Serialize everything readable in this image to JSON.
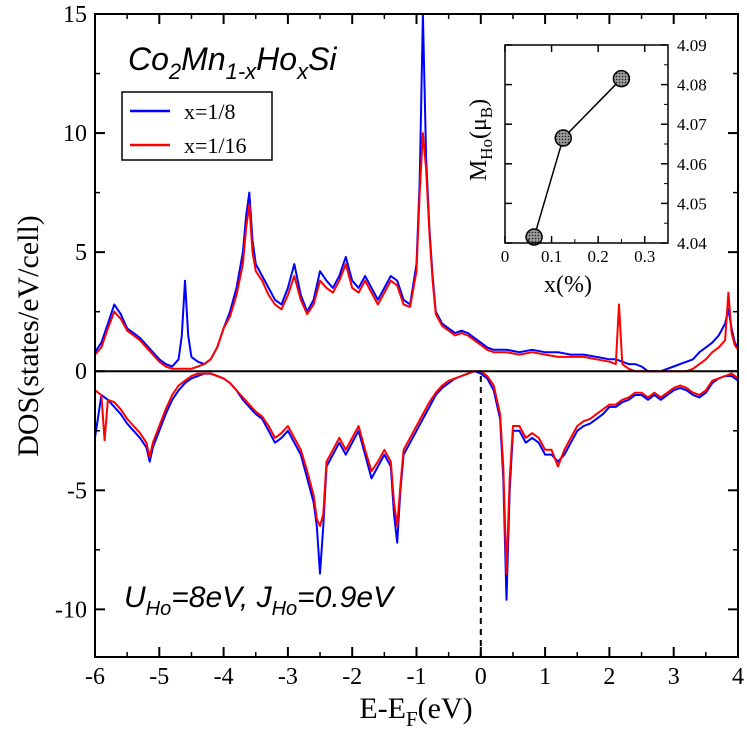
{
  "chart_data": [
    {
      "type": "line",
      "title": "Co2Mn1-xHoxSi",
      "title_parts": {
        "co": "Co",
        "two": "2",
        "mn": "Mn",
        "sub": "1-x",
        "ho": "Ho",
        "subx": "x",
        "si": "Si"
      },
      "xlabel": {
        "main": "E-E",
        "sub": "F",
        "unit": "(eV)"
      },
      "ylabel": "DOS(states/eV/cell)",
      "xlim": [
        -6,
        4
      ],
      "ylim": [
        -12,
        15
      ],
      "xticks": [
        "-6",
        "-5",
        "-4",
        "-3",
        "-2",
        "-1",
        "0",
        "1",
        "2",
        "3",
        "4"
      ],
      "yticks": [
        "-10",
        "-5",
        "0",
        "5",
        "10",
        "15"
      ],
      "grid": false,
      "legend_position": "top-left",
      "fermi_level_marker": {
        "x": 0,
        "style": "dashed"
      },
      "annotation": {
        "u": "U",
        "u_sub": "Ho",
        "u_val": "=8eV, ",
        "j": "J",
        "j_sub": "Ho",
        "j_val": "=0.9eV"
      },
      "series": [
        {
          "name": "x=1/8",
          "color": "#0000ff",
          "spin_up": {
            "x": [
              -6.0,
              -5.9,
              -5.8,
              -5.7,
              -5.6,
              -5.5,
              -5.4,
              -5.3,
              -5.2,
              -5.1,
              -5.0,
              -4.9,
              -4.8,
              -4.7,
              -4.65,
              -4.6,
              -4.55,
              -4.5,
              -4.4,
              -4.3,
              -4.2,
              -4.1,
              -4.0,
              -3.9,
              -3.8,
              -3.7,
              -3.65,
              -3.6,
              -3.55,
              -3.5,
              -3.4,
              -3.3,
              -3.2,
              -3.1,
              -3.0,
              -2.9,
              -2.8,
              -2.7,
              -2.6,
              -2.5,
              -2.4,
              -2.3,
              -2.2,
              -2.1,
              -2.0,
              -1.9,
              -1.8,
              -1.7,
              -1.6,
              -1.5,
              -1.4,
              -1.3,
              -1.2,
              -1.1,
              -1.0,
              -0.95,
              -0.9,
              -0.85,
              -0.8,
              -0.75,
              -0.7,
              -0.6,
              -0.5,
              -0.4,
              -0.3,
              -0.2,
              -0.1,
              0.0,
              0.1,
              0.2,
              0.4,
              0.6,
              0.8,
              1.0,
              1.2,
              1.4,
              1.6,
              1.8,
              2.0,
              2.1,
              2.2,
              2.3,
              2.4,
              2.5,
              2.6,
              2.7,
              2.8,
              2.9,
              3.0,
              3.1,
              3.2,
              3.3,
              3.4,
              3.5,
              3.6,
              3.7,
              3.8,
              3.85,
              3.9,
              3.95,
              4.0
            ],
            "y": [
              0.8,
              1.2,
              2.0,
              2.8,
              2.4,
              1.8,
              1.6,
              1.4,
              1.1,
              0.8,
              0.5,
              0.3,
              0.2,
              0.5,
              1.5,
              3.8,
              1.5,
              0.6,
              0.4,
              0.3,
              0.5,
              1.0,
              1.8,
              2.5,
              3.5,
              5.0,
              6.5,
              7.5,
              5.5,
              4.5,
              4.0,
              3.5,
              3.0,
              2.8,
              3.5,
              4.5,
              3.2,
              2.5,
              3.0,
              4.2,
              3.8,
              3.5,
              4.0,
              4.8,
              3.8,
              3.5,
              4.0,
              3.5,
              3.0,
              3.5,
              4.0,
              3.8,
              3.0,
              2.8,
              4.5,
              8.0,
              15.0,
              9.0,
              6.0,
              4.0,
              2.5,
              2.0,
              1.8,
              1.6,
              1.7,
              1.6,
              1.4,
              1.2,
              1.0,
              0.9,
              0.9,
              0.8,
              0.9,
              0.8,
              0.8,
              0.7,
              0.7,
              0.6,
              0.5,
              0.5,
              0.4,
              0.3,
              0.3,
              0.2,
              0.0,
              0.0,
              0.0,
              0.1,
              0.2,
              0.3,
              0.4,
              0.5,
              0.8,
              1.0,
              1.2,
              1.5,
              2.0,
              2.6,
              1.8,
              1.2,
              1.0
            ]
          },
          "spin_down": {
            "x": [
              -6.0,
              -5.9,
              -5.8,
              -5.7,
              -5.6,
              -5.5,
              -5.4,
              -5.3,
              -5.2,
              -5.15,
              -5.1,
              -5.0,
              -4.9,
              -4.8,
              -4.7,
              -4.6,
              -4.5,
              -4.4,
              -4.3,
              -4.2,
              -4.1,
              -4.0,
              -3.9,
              -3.8,
              -3.7,
              -3.6,
              -3.5,
              -3.4,
              -3.3,
              -3.2,
              -3.1,
              -3.0,
              -2.9,
              -2.8,
              -2.7,
              -2.6,
              -2.55,
              -2.5,
              -2.45,
              -2.4,
              -2.3,
              -2.2,
              -2.1,
              -2.0,
              -1.9,
              -1.8,
              -1.7,
              -1.6,
              -1.5,
              -1.4,
              -1.35,
              -1.3,
              -1.25,
              -1.2,
              -1.1,
              -1.0,
              -0.9,
              -0.8,
              -0.7,
              -0.6,
              -0.5,
              -0.4,
              -0.3,
              -0.2,
              -0.1,
              0.0,
              0.1,
              0.2,
              0.3,
              0.35,
              0.4,
              0.45,
              0.5,
              0.6,
              0.7,
              0.8,
              0.9,
              1.0,
              1.1,
              1.2,
              1.3,
              1.4,
              1.5,
              1.6,
              1.7,
              1.8,
              1.9,
              2.0,
              2.1,
              2.2,
              2.3,
              2.4,
              2.5,
              2.6,
              2.7,
              2.8,
              2.9,
              3.0,
              3.1,
              3.2,
              3.3,
              3.4,
              3.5,
              3.6,
              3.7,
              3.8,
              3.9,
              4.0
            ],
            "y": [
              -2.8,
              -1.0,
              -1.2,
              -1.5,
              -1.8,
              -2.2,
              -2.5,
              -2.8,
              -3.2,
              -3.8,
              -3.2,
              -2.5,
              -1.8,
              -1.2,
              -0.8,
              -0.5,
              -0.3,
              -0.2,
              -0.1,
              -0.1,
              -0.2,
              -0.3,
              -0.5,
              -0.8,
              -1.2,
              -1.5,
              -1.8,
              -2.0,
              -2.5,
              -3.0,
              -2.8,
              -2.5,
              -3.0,
              -3.5,
              -4.5,
              -5.5,
              -6.5,
              -8.5,
              -6.5,
              -4.0,
              -3.5,
              -3.0,
              -3.5,
              -3.0,
              -2.5,
              -3.5,
              -4.5,
              -4.0,
              -3.5,
              -4.0,
              -6.0,
              -7.2,
              -5.0,
              -3.5,
              -3.0,
              -2.5,
              -2.0,
              -1.5,
              -1.0,
              -0.7,
              -0.5,
              -0.3,
              -0.2,
              -0.1,
              0.0,
              -0.1,
              -0.3,
              -0.8,
              -2.0,
              -4.5,
              -9.6,
              -5.0,
              -2.5,
              -2.5,
              -3.0,
              -2.8,
              -3.0,
              -3.5,
              -3.5,
              -3.8,
              -3.5,
              -3.0,
              -2.5,
              -2.3,
              -2.2,
              -2.0,
              -1.8,
              -1.5,
              -1.5,
              -1.3,
              -1.2,
              -1.0,
              -1.0,
              -1.2,
              -1.0,
              -1.2,
              -1.0,
              -0.8,
              -0.7,
              -0.8,
              -1.0,
              -1.1,
              -0.9,
              -0.5,
              -0.3,
              -0.2,
              -0.2,
              -0.4
            ]
          }
        },
        {
          "name": "x=1/16",
          "color": "#ff0000",
          "spin_up": {
            "x": [
              -6.0,
              -5.9,
              -5.8,
              -5.7,
              -5.6,
              -5.5,
              -5.4,
              -5.3,
              -5.2,
              -5.1,
              -5.0,
              -4.9,
              -4.8,
              -4.7,
              -4.6,
              -4.5,
              -4.4,
              -4.3,
              -4.2,
              -4.1,
              -4.0,
              -3.9,
              -3.8,
              -3.7,
              -3.65,
              -3.6,
              -3.55,
              -3.5,
              -3.4,
              -3.3,
              -3.2,
              -3.1,
              -3.0,
              -2.9,
              -2.8,
              -2.7,
              -2.6,
              -2.5,
              -2.4,
              -2.3,
              -2.2,
              -2.1,
              -2.0,
              -1.9,
              -1.8,
              -1.7,
              -1.6,
              -1.5,
              -1.4,
              -1.3,
              -1.2,
              -1.1,
              -1.0,
              -0.95,
              -0.9,
              -0.85,
              -0.8,
              -0.75,
              -0.7,
              -0.6,
              -0.5,
              -0.4,
              -0.3,
              -0.2,
              -0.1,
              0.0,
              0.1,
              0.2,
              0.4,
              0.6,
              0.8,
              1.0,
              1.2,
              1.4,
              1.6,
              1.8,
              2.0,
              2.1,
              2.15,
              2.2,
              2.3,
              2.4,
              2.5,
              2.6,
              2.7,
              2.8,
              2.9,
              3.0,
              3.1,
              3.2,
              3.3,
              3.4,
              3.5,
              3.6,
              3.7,
              3.8,
              3.85,
              3.9,
              3.95,
              4.0
            ],
            "y": [
              0.7,
              1.0,
              1.8,
              2.5,
              2.2,
              1.7,
              1.5,
              1.3,
              1.0,
              0.7,
              0.4,
              0.2,
              0.1,
              0.1,
              0.1,
              0.1,
              0.2,
              0.3,
              0.5,
              1.0,
              1.8,
              2.3,
              3.2,
              4.5,
              6.0,
              7.0,
              5.0,
              4.2,
              3.8,
              3.2,
              2.8,
              2.6,
              3.2,
              4.0,
              3.0,
              2.4,
              2.8,
              3.8,
              3.5,
              3.3,
              3.8,
              4.5,
              3.5,
              3.3,
              3.8,
              3.3,
              2.8,
              3.3,
              3.8,
              3.6,
              2.8,
              2.7,
              4.2,
              7.5,
              10.0,
              8.5,
              5.8,
              3.8,
              2.4,
              1.9,
              1.7,
              1.5,
              1.6,
              1.5,
              1.3,
              1.1,
              0.9,
              0.8,
              0.8,
              0.7,
              0.8,
              0.7,
              0.6,
              0.6,
              0.6,
              0.5,
              0.4,
              0.3,
              2.8,
              0.3,
              0.1,
              0.0,
              0.0,
              0.0,
              0.0,
              0.0,
              0.0,
              0.0,
              0.0,
              0.0,
              0.1,
              0.3,
              0.5,
              0.8,
              1.0,
              1.3,
              3.3,
              1.6,
              1.1,
              0.9
            ]
          },
          "spin_down": {
            "x": [
              -6.0,
              -5.9,
              -5.85,
              -5.8,
              -5.7,
              -5.6,
              -5.5,
              -5.4,
              -5.3,
              -5.2,
              -5.15,
              -5.1,
              -5.0,
              -4.9,
              -4.8,
              -4.7,
              -4.6,
              -4.5,
              -4.4,
              -4.3,
              -4.2,
              -4.1,
              -4.0,
              -3.9,
              -3.8,
              -3.7,
              -3.6,
              -3.5,
              -3.4,
              -3.3,
              -3.2,
              -3.1,
              -3.0,
              -2.9,
              -2.8,
              -2.7,
              -2.6,
              -2.55,
              -2.5,
              -2.45,
              -2.4,
              -2.3,
              -2.2,
              -2.1,
              -2.0,
              -1.9,
              -1.8,
              -1.7,
              -1.6,
              -1.5,
              -1.4,
              -1.35,
              -1.3,
              -1.25,
              -1.2,
              -1.1,
              -1.0,
              -0.9,
              -0.8,
              -0.7,
              -0.6,
              -0.5,
              -0.4,
              -0.3,
              -0.2,
              -0.1,
              0.0,
              0.1,
              0.2,
              0.3,
              0.35,
              0.4,
              0.45,
              0.5,
              0.6,
              0.7,
              0.8,
              0.9,
              1.0,
              1.1,
              1.2,
              1.3,
              1.4,
              1.5,
              1.6,
              1.7,
              1.8,
              1.9,
              2.0,
              2.1,
              2.2,
              2.3,
              2.4,
              2.5,
              2.6,
              2.7,
              2.8,
              2.9,
              3.0,
              3.1,
              3.2,
              3.3,
              3.4,
              3.5,
              3.6,
              3.7,
              3.8,
              3.9,
              4.0
            ],
            "y": [
              -0.8,
              -1.0,
              -2.9,
              -1.2,
              -1.3,
              -1.6,
              -2.0,
              -2.3,
              -2.6,
              -3.0,
              -3.6,
              -3.0,
              -2.3,
              -1.6,
              -1.0,
              -0.6,
              -0.4,
              -0.2,
              -0.1,
              -0.1,
              -0.1,
              -0.2,
              -0.3,
              -0.5,
              -0.8,
              -1.1,
              -1.4,
              -1.7,
              -1.9,
              -2.3,
              -2.8,
              -2.6,
              -2.3,
              -2.8,
              -3.3,
              -4.2,
              -5.2,
              -6.2,
              -6.5,
              -6.0,
              -3.8,
              -3.3,
              -2.8,
              -3.3,
              -2.8,
              -2.3,
              -3.3,
              -4.2,
              -3.8,
              -3.3,
              -3.8,
              -5.5,
              -6.5,
              -4.8,
              -3.3,
              -2.8,
              -2.3,
              -1.8,
              -1.3,
              -0.9,
              -0.6,
              -0.4,
              -0.3,
              -0.2,
              -0.1,
              0.0,
              0.0,
              -0.2,
              -0.6,
              -1.8,
              -4.0,
              -8.5,
              -4.5,
              -2.3,
              -2.3,
              -2.8,
              -2.6,
              -2.8,
              -3.3,
              -3.3,
              -4.0,
              -3.3,
              -2.8,
              -2.3,
              -2.1,
              -2.0,
              -1.8,
              -1.6,
              -1.4,
              -1.4,
              -1.2,
              -1.1,
              -0.9,
              -0.9,
              -1.1,
              -0.9,
              -1.1,
              -0.9,
              -0.7,
              -0.6,
              -0.7,
              -0.9,
              -1.0,
              -0.8,
              -0.4,
              -0.3,
              -0.2,
              -0.1,
              -0.3
            ]
          }
        }
      ]
    },
    {
      "type": "scatter",
      "xlabel": "x(%)",
      "ylabel": {
        "main": "M",
        "sub": "Ho",
        "unit_open": "(μ",
        "unit_sub": "B",
        "unit_close": ")"
      },
      "xlim": [
        0,
        0.35
      ],
      "ylim": [
        4.04,
        4.09
      ],
      "xticks": [
        "0",
        "0.1",
        "0.2",
        "0.3"
      ],
      "yticks": [
        "4.04",
        "4.05",
        "4.06",
        "4.07",
        "4.08",
        "4.09"
      ],
      "y_axis_side": "right",
      "marker": "hatched-circle",
      "connected": true,
      "x": [
        0.0625,
        0.125,
        0.25
      ],
      "y": [
        4.0415,
        4.0665,
        4.0815
      ]
    }
  ]
}
